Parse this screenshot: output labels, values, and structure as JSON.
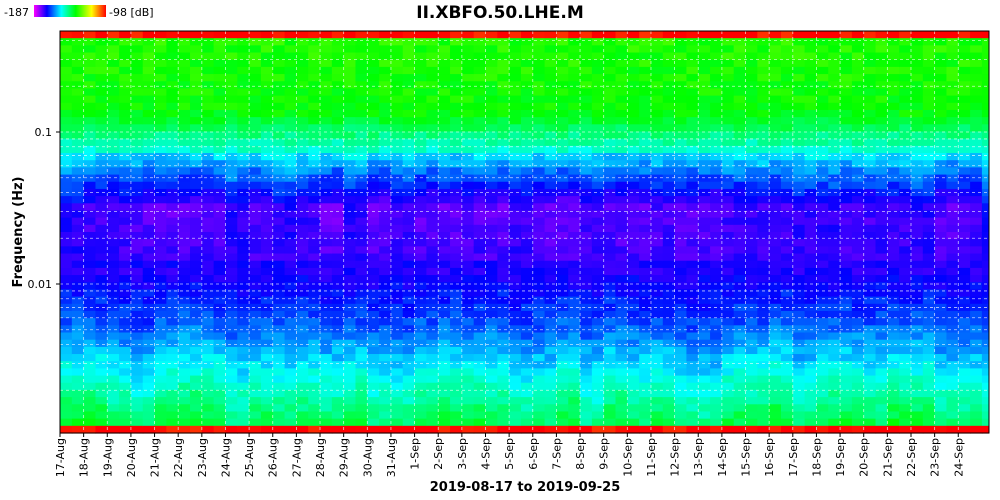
{
  "chart_data": {
    "type": "heatmap",
    "title": "II.XBFO.50.LHE.M",
    "xlabel": "2019-08-17 to 2019-09-25",
    "ylabel": "Frequency (Hz)",
    "y_scale": "log",
    "ylim": [
      0.0003,
      0.6
    ],
    "y_ticks": [
      {
        "value": 0.1,
        "label": "0.1"
      },
      {
        "value": 0.01,
        "label": "0.01"
      }
    ],
    "grid": true,
    "colorbar": {
      "min_label": "-187",
      "max_label": "-98 [dB]",
      "min": -187,
      "max": -98,
      "placement": "top-left"
    },
    "x_categories": [
      "17-Aug",
      "18-Aug",
      "19-Aug",
      "20-Aug",
      "21-Aug",
      "22-Aug",
      "23-Aug",
      "24-Aug",
      "25-Aug",
      "26-Aug",
      "27-Aug",
      "28-Aug",
      "29-Aug",
      "30-Aug",
      "31-Aug",
      "1-Sep",
      "2-Sep",
      "3-Sep",
      "4-Sep",
      "5-Sep",
      "6-Sep",
      "7-Sep",
      "8-Sep",
      "9-Sep",
      "10-Sep",
      "11-Sep",
      "12-Sep",
      "13-Sep",
      "14-Sep",
      "15-Sep",
      "16-Sep",
      "17-Sep",
      "18-Sep",
      "19-Sep",
      "20-Sep",
      "21-Sep",
      "22-Sep",
      "23-Sep",
      "24-Sep"
    ],
    "colors": {
      "max": "#ff0000",
      "high": "#00ff00",
      "mid": "#00ffff",
      "low": "#0000ff",
      "min": "#8800ff"
    }
  }
}
